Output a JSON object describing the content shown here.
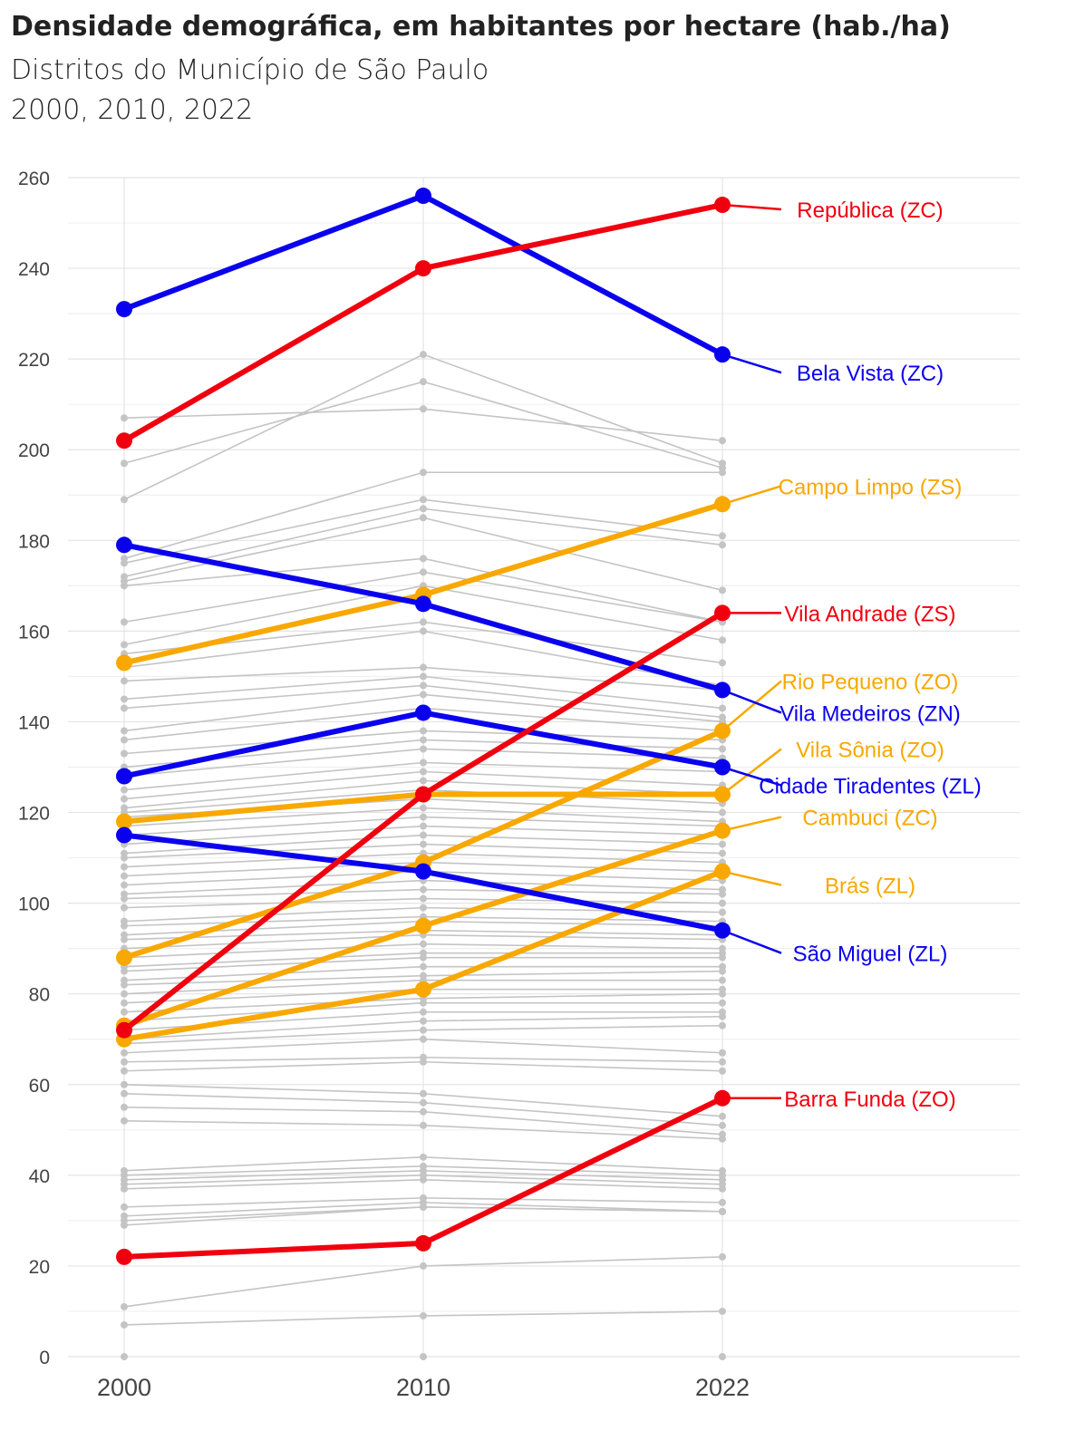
{
  "chart_data": {
    "type": "line",
    "title": "Densidade demográfica, em habitantes por hectare (hab./ha)",
    "subtitle_1": "Distritos do Município de São Paulo",
    "subtitle_2": "2000, 2010, 2022",
    "x": [
      "2000",
      "2010",
      "2022"
    ],
    "ylim": [
      0,
      260
    ],
    "yticks": [
      0,
      20,
      40,
      60,
      80,
      100,
      120,
      140,
      160,
      180,
      200,
      220,
      240,
      260
    ],
    "grid": true,
    "colors": {
      "ZC_ZS_red": "#f0000f",
      "blue": "#0a00ee",
      "orange": "#f8a800",
      "grey": "#c4c4c4"
    },
    "highlighted_series": [
      {
        "name": "República (ZC)",
        "color": "#f0000f",
        "values": [
          202,
          240,
          254
        ],
        "label_y": 253
      },
      {
        "name": "Bela Vista (ZC)",
        "color": "#0a00ee",
        "values": [
          231,
          256,
          221
        ],
        "label_y": 217
      },
      {
        "name": "Campo Limpo (ZS)",
        "color": "#f8a800",
        "values": [
          153,
          168,
          188
        ],
        "label_y": 192
      },
      {
        "name": "Vila Andrade (ZS)",
        "color": "#f0000f",
        "values": [
          72,
          124,
          164
        ],
        "label_y": 164
      },
      {
        "name": "Rio Pequeno (ZO)",
        "color": "#f8a800",
        "values": [
          88,
          109,
          138
        ],
        "label_y": 149
      },
      {
        "name": "Vila Medeiros (ZN)",
        "color": "#0a00ee",
        "values": [
          179,
          166,
          147
        ],
        "label_y": 142
      },
      {
        "name": "Vila Sônia (ZO)",
        "color": "#f8a800",
        "values": [
          118,
          124,
          124
        ],
        "label_y": 134
      },
      {
        "name": "Cidade Tiradentes (ZL)",
        "color": "#0a00ee",
        "values": [
          128,
          142,
          130
        ],
        "label_y": 126
      },
      {
        "name": "Cambuci (ZC)",
        "color": "#f8a800",
        "values": [
          73,
          95,
          116
        ],
        "label_y": 119
      },
      {
        "name": "Brás (ZL)",
        "color": "#f8a800",
        "values": [
          70,
          81,
          107
        ],
        "label_y": 104
      },
      {
        "name": "São Miguel (ZL)",
        "color": "#0a00ee",
        "values": [
          115,
          107,
          94
        ],
        "label_y": 89
      },
      {
        "name": "Barra Funda (ZO)",
        "color": "#f0000f",
        "values": [
          22,
          25,
          57
        ],
        "label_y": 57
      }
    ],
    "background_series": [
      [
        207,
        209,
        202
      ],
      [
        197,
        215,
        196
      ],
      [
        189,
        221,
        197
      ],
      [
        176,
        195,
        195
      ],
      [
        175,
        189,
        181
      ],
      [
        172,
        187,
        179
      ],
      [
        171,
        185,
        169
      ],
      [
        170,
        176,
        162
      ],
      [
        162,
        173,
        162
      ],
      [
        157,
        170,
        158
      ],
      [
        155,
        162,
        153
      ],
      [
        152,
        160,
        148
      ],
      [
        149,
        152,
        147
      ],
      [
        145,
        150,
        143
      ],
      [
        143,
        148,
        141
      ],
      [
        138,
        146,
        140
      ],
      [
        136,
        143,
        138
      ],
      [
        133,
        138,
        136
      ],
      [
        130,
        136,
        134
      ],
      [
        128,
        134,
        132
      ],
      [
        125,
        131,
        129
      ],
      [
        123,
        129,
        126
      ],
      [
        121,
        127,
        124
      ],
      [
        120,
        125,
        122
      ],
      [
        119,
        123,
        120
      ],
      [
        117,
        121,
        118
      ],
      [
        115,
        119,
        117
      ],
      [
        113,
        117,
        115
      ],
      [
        111,
        115,
        113
      ],
      [
        110,
        113,
        111
      ],
      [
        108,
        111,
        109
      ],
      [
        106,
        109,
        107
      ],
      [
        104,
        107,
        105
      ],
      [
        102,
        105,
        103
      ],
      [
        101,
        103,
        102
      ],
      [
        99,
        101,
        100
      ],
      [
        96,
        99,
        98
      ],
      [
        95,
        97,
        96
      ],
      [
        93,
        96,
        95
      ],
      [
        92,
        94,
        93
      ],
      [
        90,
        93,
        92
      ],
      [
        88,
        91,
        90
      ],
      [
        86,
        89,
        89
      ],
      [
        85,
        88,
        88
      ],
      [
        83,
        86,
        86
      ],
      [
        82,
        84,
        85
      ],
      [
        80,
        83,
        83
      ],
      [
        78,
        81,
        81
      ],
      [
        76,
        79,
        80
      ],
      [
        74,
        78,
        78
      ],
      [
        72,
        76,
        76
      ],
      [
        70,
        74,
        75
      ],
      [
        69,
        72,
        73
      ],
      [
        67,
        70,
        67
      ],
      [
        65,
        66,
        65
      ],
      [
        63,
        65,
        63
      ],
      [
        60,
        58,
        53
      ],
      [
        58,
        56,
        51
      ],
      [
        55,
        54,
        49
      ],
      [
        52,
        51,
        48
      ],
      [
        41,
        44,
        41
      ],
      [
        40,
        42,
        40
      ],
      [
        39,
        41,
        39
      ],
      [
        38,
        40,
        38
      ],
      [
        37,
        39,
        37
      ],
      [
        33,
        35,
        34
      ],
      [
        31,
        34,
        32
      ],
      [
        30,
        33,
        32
      ],
      [
        29,
        33,
        32
      ],
      [
        11,
        20,
        22
      ],
      [
        7,
        9,
        10
      ]
    ]
  }
}
